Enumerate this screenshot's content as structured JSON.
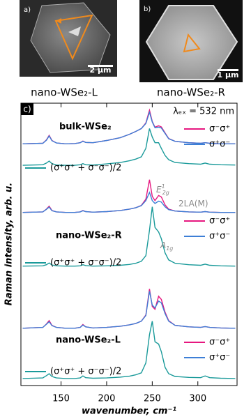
{
  "images": [
    {
      "panel": "a)",
      "scale_bar": "2 µm",
      "caption": "nano-WSe₂-L"
    },
    {
      "panel": "b)",
      "scale_bar": "1 µm",
      "caption": "nano-WSe₂-R"
    }
  ],
  "chart_data": {
    "type": "line",
    "panel": "c)",
    "annotation": "λₑₓ = 532 nm",
    "xlabel": "wavenumber, cm⁻¹",
    "ylabel": "Raman intensity, arb. u.",
    "xlim": [
      106,
      343
    ],
    "xticks": [
      150,
      200,
      250,
      300
    ],
    "ylim": [
      0,
      100
    ],
    "x": [
      108,
      130,
      134,
      137,
      140,
      145,
      155,
      165,
      171,
      174,
      177,
      185,
      200,
      215,
      225,
      232,
      238,
      243,
      247,
      250,
      253,
      257,
      260,
      264,
      268,
      275,
      290,
      303,
      308,
      313,
      325,
      341
    ],
    "groups": [
      {
        "label": "bulk-WSe₂"
      },
      {
        "label": "nano-WSe₂-R"
      },
      {
        "label": "nano-WSe₂-L"
      }
    ],
    "series": [
      {
        "name": "σ⁻σ⁺",
        "color": "#e6177f",
        "values": [
          85.6,
          85.8,
          87,
          88.6,
          86.8,
          85.9,
          85.6,
          85.7,
          86,
          86.6,
          86.1,
          86,
          86.8,
          87.8,
          89,
          90,
          91,
          93,
          97.5,
          93.5,
          91.5,
          92,
          91.6,
          89.5,
          87.5,
          86.5,
          86,
          85.8,
          86,
          85.8,
          85.6,
          85.6
        ]
      },
      {
        "name": "σ⁺σ⁻",
        "color": "#3d7fd6",
        "values": [
          85.6,
          85.8,
          86.9,
          88.4,
          86.7,
          85.9,
          85.6,
          85.7,
          86,
          86.5,
          86.1,
          86,
          86.8,
          87.8,
          89,
          90,
          91,
          92.8,
          96.8,
          93.3,
          91.3,
          91.5,
          91.2,
          89.3,
          87.4,
          86.5,
          86,
          85.8,
          86,
          85.8,
          85.6,
          85.6
        ]
      },
      {
        "name": "(σ⁺σ⁺ + σ⁻σ⁻)/2",
        "color": "#1a9a9a",
        "values": [
          78,
          78.2,
          78.8,
          79.5,
          78.6,
          78.1,
          78,
          78,
          78.2,
          78.6,
          78.2,
          78.1,
          78.5,
          79,
          79.6,
          80.2,
          81,
          84,
          91,
          88,
          86,
          86,
          84,
          81.5,
          80,
          79,
          78.6,
          78.4,
          78.8,
          78.4,
          78.2,
          78.1
        ]
      },
      {
        "name": "σ⁻σ⁺",
        "color": "#e6177f",
        "values": [
          61.3,
          61.5,
          62.5,
          63.5,
          62,
          61.5,
          61.3,
          61.3,
          61.5,
          62,
          61.6,
          61.4,
          61.6,
          62,
          62.5,
          63,
          63.8,
          66,
          72.9,
          67,
          65.5,
          67.3,
          66.8,
          64,
          62.5,
          61.8,
          61.5,
          61.4,
          61.6,
          61.4,
          61.3,
          61.3
        ]
      },
      {
        "name": "σ⁺σ⁻",
        "color": "#3d7fd6",
        "values": [
          61.3,
          61.5,
          62.4,
          63.2,
          61.9,
          61.5,
          61.3,
          61.3,
          61.5,
          61.9,
          61.6,
          61.4,
          61.6,
          62,
          62.5,
          63,
          63.7,
          65.5,
          68.4,
          65.5,
          64.5,
          65.3,
          65,
          63.3,
          62.3,
          61.8,
          61.5,
          61.4,
          61.6,
          61.4,
          61.3,
          61.3
        ]
      },
      {
        "name": "(σ⁺σ⁺ + σ⁻σ⁻)/2",
        "color": "#1a9a9a",
        "values": [
          42.3,
          42.4,
          42.8,
          43.4,
          42.7,
          42.4,
          42.3,
          42.3,
          42.4,
          42.8,
          42.5,
          42.3,
          42.4,
          42.6,
          42.9,
          43.3,
          44,
          46,
          55,
          63.3,
          56,
          54.4,
          52,
          47,
          44.5,
          43.3,
          42.8,
          42.6,
          43,
          42.6,
          42.4,
          42.3
        ]
      },
      {
        "name": "σ⁻σ⁺",
        "color": "#e6177f",
        "values": [
          20.3,
          20.6,
          21.8,
          23,
          21.3,
          20.6,
          20.3,
          20.3,
          20.6,
          21.6,
          20.8,
          20.4,
          20.6,
          21,
          21.5,
          22,
          22.8,
          25,
          34.2,
          28,
          27,
          31.6,
          30.5,
          26,
          23,
          21.3,
          20.8,
          20.6,
          20.9,
          20.6,
          20.4,
          20.3
        ]
      },
      {
        "name": "σ⁺σ⁻",
        "color": "#3d7fd6",
        "values": [
          20.3,
          20.6,
          21.7,
          22.6,
          21.2,
          20.6,
          20.3,
          20.3,
          20.6,
          21.4,
          20.8,
          20.4,
          20.6,
          21,
          21.5,
          22,
          22.8,
          24.8,
          33.4,
          28.5,
          27.5,
          29.9,
          29.3,
          25.5,
          22.8,
          21.3,
          20.8,
          20.6,
          20.9,
          20.6,
          20.4,
          20.3
        ]
      },
      {
        "name": "(σ⁺σ⁺ + σ⁻σ⁻)/2",
        "color": "#1a9a9a",
        "values": [
          2.5,
          2.7,
          3.5,
          4.2,
          3.2,
          2.7,
          2.5,
          2.5,
          2.7,
          3.4,
          2.8,
          2.6,
          2.7,
          3,
          3.3,
          3.8,
          4.5,
          8,
          18,
          22.8,
          15.5,
          14.7,
          12,
          6.5,
          4.2,
          3.2,
          2.9,
          2.8,
          3.4,
          2.8,
          2.6,
          2.5
        ]
      }
    ],
    "peak_labels": [
      {
        "main": "E",
        "sup": "1",
        "sub": "2g"
      },
      {
        "main": "2LA(M)"
      },
      {
        "main": "A",
        "sub": "1g"
      }
    ]
  }
}
